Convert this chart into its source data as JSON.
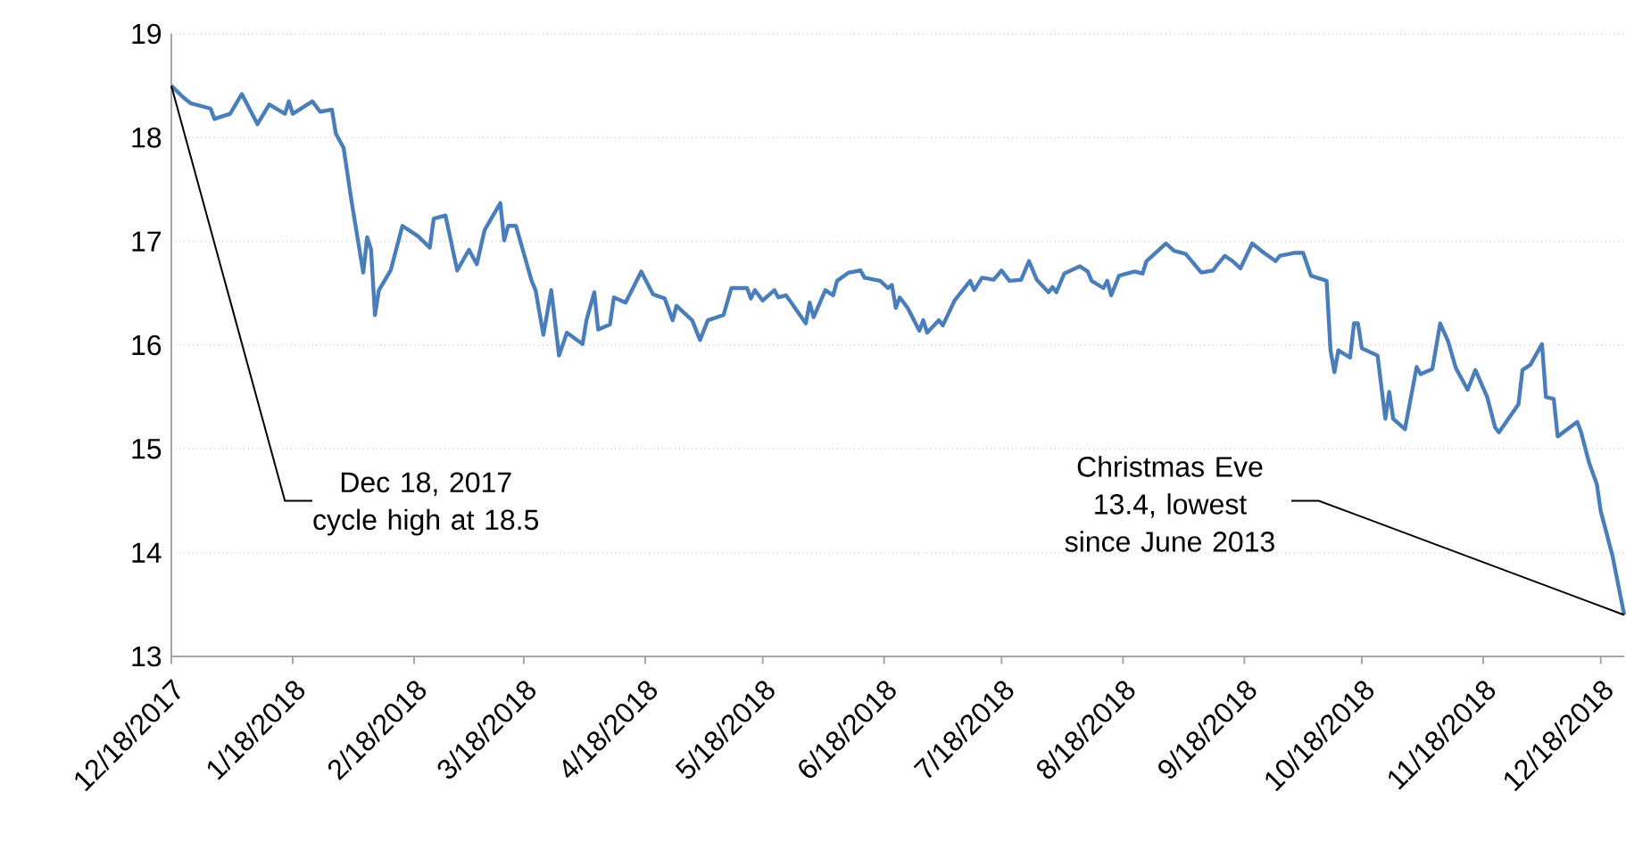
{
  "chart_data": {
    "type": "line",
    "color": "#4a7ebb",
    "line_style": "solid",
    "marker": "none",
    "grid": "y",
    "xlim": [
      "2017-12-18",
      "2018-12-24"
    ],
    "ylim": [
      13,
      19
    ],
    "yticks": [
      13,
      14,
      15,
      16,
      17,
      18,
      19
    ],
    "xticks": [
      {
        "value": "2017-12-18",
        "label": "12/18/2017"
      },
      {
        "value": "2018-01-18",
        "label": "1/18/2018"
      },
      {
        "value": "2018-02-18",
        "label": "2/18/2018"
      },
      {
        "value": "2018-03-18",
        "label": "3/18/2018"
      },
      {
        "value": "2018-04-18",
        "label": "4/18/2018"
      },
      {
        "value": "2018-05-18",
        "label": "5/18/2018"
      },
      {
        "value": "2018-06-18",
        "label": "6/18/2018"
      },
      {
        "value": "2018-07-18",
        "label": "7/18/2018"
      },
      {
        "value": "2018-08-18",
        "label": "8/18/2018"
      },
      {
        "value": "2018-09-18",
        "label": "9/18/2018"
      },
      {
        "value": "2018-10-18",
        "label": "10/18/2018"
      },
      {
        "value": "2018-11-18",
        "label": "11/18/2018"
      },
      {
        "value": "2018-12-18",
        "label": "12/18/2018"
      }
    ],
    "annotations": [
      {
        "text": "Dec 18, 2017 cycle high at 18.5",
        "x": "2017-12-18",
        "y": 18.5
      },
      {
        "text": "Christmas Eve 13.4, lowest since June 2013",
        "x": "2018-12-24",
        "y": 13.4
      }
    ],
    "x": [
      "2017-12-18",
      "2017-12-21",
      "2017-12-23",
      "2017-12-28",
      "2017-12-29",
      "2018-01-02",
      "2018-01-05",
      "2018-01-09",
      "2018-01-12",
      "2018-01-16",
      "2018-01-17",
      "2018-01-18",
      "2018-01-23",
      "2018-01-25",
      "2018-01-28",
      "2018-01-29",
      "2018-01-31",
      "2018-02-02",
      "2018-02-05",
      "2018-02-06",
      "2018-02-07",
      "2018-02-08",
      "2018-02-09",
      "2018-02-12",
      "2018-02-15",
      "2018-02-19",
      "2018-02-22",
      "2018-02-23",
      "2018-02-26",
      "2018-03-01",
      "2018-03-04",
      "2018-03-06",
      "2018-03-08",
      "2018-03-12",
      "2018-03-13",
      "2018-03-14",
      "2018-03-16",
      "2018-03-20",
      "2018-03-21",
      "2018-03-23",
      "2018-03-25",
      "2018-03-27",
      "2018-03-29",
      "2018-04-02",
      "2018-04-03",
      "2018-04-05",
      "2018-04-06",
      "2018-04-09",
      "2018-04-10",
      "2018-04-13",
      "2018-04-17",
      "2018-04-20",
      "2018-04-23",
      "2018-04-25",
      "2018-04-26",
      "2018-04-30",
      "2018-05-02",
      "2018-05-04",
      "2018-05-08",
      "2018-05-10",
      "2018-05-14",
      "2018-05-15",
      "2018-05-16",
      "2018-05-18",
      "2018-05-21",
      "2018-05-22",
      "2018-05-24",
      "2018-05-29",
      "2018-05-30",
      "2018-05-31",
      "2018-06-03",
      "2018-06-05",
      "2018-06-06",
      "2018-06-09",
      "2018-06-12",
      "2018-06-13",
      "2018-06-17",
      "2018-06-19",
      "2018-06-20",
      "2018-06-21",
      "2018-06-22",
      "2018-06-24",
      "2018-06-27",
      "2018-06-28",
      "2018-06-29",
      "2018-07-02",
      "2018-07-03",
      "2018-07-06",
      "2018-07-10",
      "2018-07-11",
      "2018-07-13",
      "2018-07-16",
      "2018-07-18",
      "2018-07-20",
      "2018-07-23",
      "2018-07-25",
      "2018-07-27",
      "2018-07-30",
      "2018-07-31",
      "2018-08-01",
      "2018-08-03",
      "2018-08-07",
      "2018-08-09",
      "2018-08-10",
      "2018-08-13",
      "2018-08-14",
      "2018-08-15",
      "2018-08-17",
      "2018-08-21",
      "2018-08-23",
      "2018-08-24",
      "2018-08-29",
      "2018-08-31",
      "2018-09-03",
      "2018-09-07",
      "2018-09-10",
      "2018-09-11",
      "2018-09-13",
      "2018-09-15",
      "2018-09-17",
      "2018-09-20",
      "2018-09-23",
      "2018-09-26",
      "2018-09-27",
      "2018-10-01",
      "2018-10-03",
      "2018-10-05",
      "2018-10-09",
      "2018-10-10",
      "2018-10-11",
      "2018-10-12",
      "2018-10-15",
      "2018-10-16",
      "2018-10-17",
      "2018-10-18",
      "2018-10-22",
      "2018-10-24",
      "2018-10-25",
      "2018-10-26",
      "2018-10-29",
      "2018-11-01",
      "2018-11-02",
      "2018-11-05",
      "2018-11-07",
      "2018-11-09",
      "2018-11-11",
      "2018-11-14",
      "2018-11-16",
      "2018-11-19",
      "2018-11-21",
      "2018-11-22",
      "2018-11-27",
      "2018-11-28",
      "2018-11-30",
      "2018-12-03",
      "2018-12-04",
      "2018-12-06",
      "2018-12-07",
      "2018-12-12",
      "2018-12-13",
      "2018-12-15",
      "2018-12-17",
      "2018-12-18",
      "2018-12-21",
      "2018-12-24"
    ],
    "values": [
      18.5,
      18.39,
      18.33,
      18.28,
      18.18,
      18.23,
      18.42,
      18.13,
      18.32,
      18.23,
      18.35,
      18.23,
      18.35,
      18.25,
      18.27,
      18.04,
      17.9,
      17.39,
      16.7,
      17.04,
      16.92,
      16.29,
      16.53,
      16.72,
      17.15,
      17.05,
      16.94,
      17.22,
      17.25,
      16.72,
      16.92,
      16.78,
      17.11,
      17.37,
      17.01,
      17.15,
      17.15,
      16.62,
      16.53,
      16.1,
      16.53,
      15.9,
      16.12,
      16.01,
      16.24,
      16.51,
      16.15,
      16.2,
      16.46,
      16.41,
      16.71,
      16.49,
      16.45,
      16.24,
      16.38,
      16.24,
      16.05,
      16.24,
      16.29,
      16.55,
      16.55,
      16.45,
      16.53,
      16.43,
      16.53,
      16.46,
      16.48,
      16.21,
      16.41,
      16.27,
      16.53,
      16.48,
      16.62,
      16.7,
      16.72,
      16.65,
      16.62,
      16.55,
      16.58,
      16.36,
      16.46,
      16.36,
      16.14,
      16.24,
      16.12,
      16.24,
      16.19,
      16.43,
      16.62,
      16.53,
      16.65,
      16.63,
      16.72,
      16.62,
      16.63,
      16.81,
      16.63,
      16.51,
      16.56,
      16.51,
      16.69,
      16.76,
      16.71,
      16.62,
      16.55,
      16.62,
      16.48,
      16.67,
      16.71,
      16.69,
      16.81,
      16.98,
      16.91,
      16.88,
      16.7,
      16.72,
      16.77,
      16.86,
      16.81,
      16.74,
      16.98,
      16.89,
      16.81,
      16.86,
      16.89,
      16.89,
      16.67,
      16.62,
      15.95,
      15.74,
      15.95,
      15.88,
      16.21,
      16.21,
      15.97,
      15.9,
      15.29,
      15.55,
      15.29,
      15.19,
      15.79,
      15.72,
      15.77,
      16.21,
      16.04,
      15.78,
      15.57,
      15.76,
      15.5,
      15.21,
      15.16,
      15.43,
      15.76,
      15.81,
      16.01,
      15.5,
      15.48,
      15.12,
      15.26,
      15.16,
      14.87,
      14.66,
      14.4,
      13.97,
      13.4
    ]
  }
}
